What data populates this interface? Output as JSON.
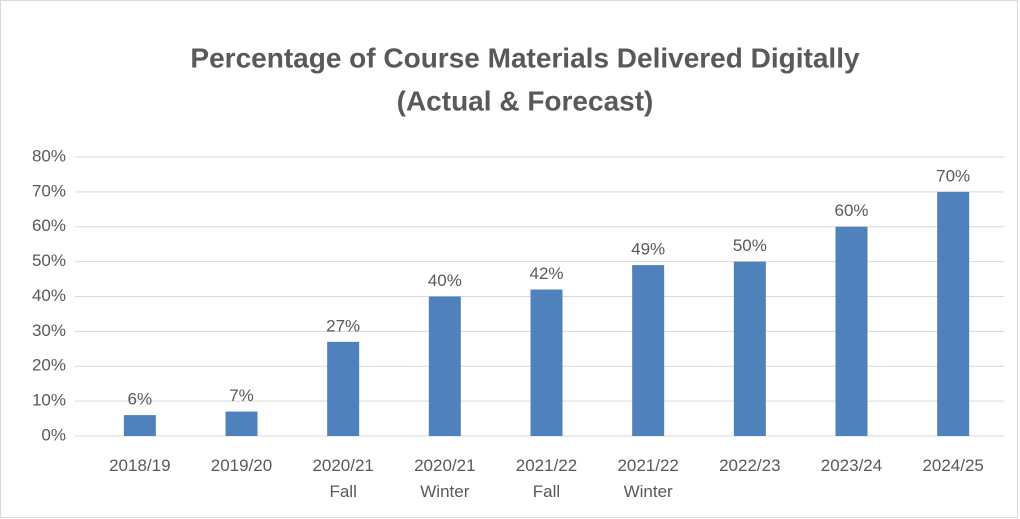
{
  "chart_data": {
    "type": "bar",
    "title": [
      "Percentage of Course Materials Delivered Digitally",
      "(Actual & Forecast)"
    ],
    "categories": [
      "2018/19",
      "2019/20",
      "2020/21 Fall",
      "2020/21 Winter",
      "2021/22 Fall",
      "2021/22 Winter",
      "2022/23",
      "2023/24",
      "2024/25"
    ],
    "values": [
      6,
      7,
      27,
      40,
      42,
      49,
      50,
      60,
      70
    ],
    "value_labels": [
      "6%",
      "7%",
      "27%",
      "40%",
      "42%",
      "49%",
      "50%",
      "60%",
      "70%"
    ],
    "color": "#4f81bd",
    "ylim": [
      0,
      80
    ],
    "yticks": [
      {
        "value": 0,
        "label": "0%"
      },
      {
        "value": 10,
        "label": "10%"
      },
      {
        "value": 20,
        "label": "20%"
      },
      {
        "value": 30,
        "label": "30%"
      },
      {
        "value": 40,
        "label": "40%"
      },
      {
        "value": 50,
        "label": "50%"
      },
      {
        "value": 60,
        "label": "60%"
      },
      {
        "value": 70,
        "label": "70%"
      },
      {
        "value": 80,
        "label": "80%"
      }
    ],
    "grid": true
  }
}
